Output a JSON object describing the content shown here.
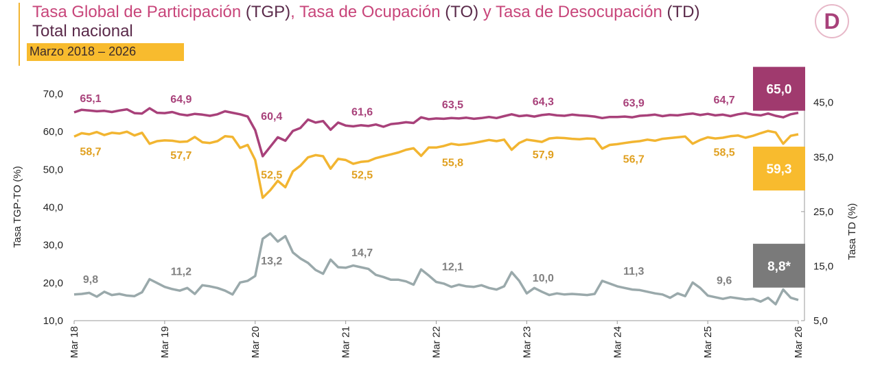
{
  "chart_data": {
    "type": "line",
    "title": [
      "Tasa Global de Participación ",
      "(TGP)",
      ", Tasa de Ocupación ",
      "(TO)",
      " y Tasa de Desocupación ",
      "(TD)"
    ],
    "subtitle": "Total nacional",
    "tag": "Marzo 2018 – 2026",
    "logo": "D",
    "y_label": "Tasa TGP-TO (%)",
    "y2_label": "Tasa TD (%)",
    "categories": [
      "Mar 18",
      null,
      null,
      null,
      null,
      null,
      null,
      null,
      null,
      null,
      null,
      null,
      "Mar 19",
      null,
      null,
      null,
      null,
      null,
      null,
      null,
      null,
      null,
      null,
      null,
      "Mar 20",
      null,
      null,
      null,
      null,
      null,
      null,
      null,
      null,
      null,
      null,
      null,
      "Mar 21",
      null,
      null,
      null,
      null,
      null,
      null,
      null,
      null,
      null,
      null,
      null,
      "Mar 22",
      null,
      null,
      null,
      null,
      null,
      null,
      null,
      null,
      null,
      null,
      null,
      "Mar 23",
      null,
      null,
      null,
      null,
      null,
      null,
      null,
      null,
      null,
      null,
      null,
      "Mar 24",
      null,
      null,
      null,
      null,
      null,
      null,
      null,
      null,
      null,
      null,
      null,
      "Mar 25",
      null,
      null,
      null,
      null,
      null,
      null,
      null,
      null,
      null,
      null,
      null,
      "Mar 26"
    ],
    "ylim": [
      10,
      70
    ],
    "yticks": [
      {
        "value": 10,
        "label": "10,0"
      },
      {
        "value": 20,
        "label": "20,0"
      },
      {
        "value": 30,
        "label": "30,0"
      },
      {
        "value": 40,
        "label": "40,0"
      },
      {
        "value": 50,
        "label": "50,0"
      },
      {
        "value": 60,
        "label": "60,0"
      },
      {
        "value": 70,
        "label": "70,0"
      }
    ],
    "y2lim": [
      5,
      46.6
    ],
    "y2ticks": [
      {
        "value": 5,
        "label": "5,0"
      },
      {
        "value": 15,
        "label": "15,0"
      },
      {
        "value": 25,
        "label": "25,0"
      },
      {
        "value": 35,
        "label": "35,0"
      },
      {
        "value": 45,
        "label": "45,0"
      }
    ],
    "series": [
      {
        "name": "TGP",
        "color": "#a8417a",
        "box_color": "#a03a6e",
        "values": [
          65.1,
          65.8,
          65.6,
          65.4,
          65.5,
          65.2,
          65.6,
          65.9,
          64.9,
          64.8,
          66.2,
          65.0,
          64.9,
          65.2,
          64.6,
          64.3,
          64.7,
          64.5,
          64.2,
          64.6,
          65.4,
          65.0,
          64.6,
          64.0,
          60.4,
          53.5,
          56.0,
          58.5,
          57.6,
          60.2,
          61.0,
          63.2,
          62.4,
          62.8,
          60.5,
          62.4,
          61.6,
          61.4,
          61.7,
          61.5,
          61.9,
          61.3,
          62.0,
          62.2,
          62.5,
          62.3,
          63.8,
          63.3,
          63.5,
          63.4,
          63.6,
          63.5,
          63.7,
          63.4,
          63.6,
          63.9,
          63.6,
          64.1,
          64.6,
          64.1,
          64.3,
          64.0,
          64.4,
          64.6,
          64.3,
          64.2,
          64.5,
          64.3,
          64.2,
          64.0,
          63.6,
          63.9,
          63.9,
          64.0,
          63.8,
          64.2,
          64.3,
          64.5,
          64.1,
          64.4,
          64.3,
          64.6,
          64.8,
          64.4,
          64.7,
          64.3,
          64.5,
          64.1,
          64.6,
          64.9,
          64.5,
          64.3,
          64.8,
          64.2,
          63.8,
          64.6,
          65.0
        ],
        "value_labels": [
          "65,1",
          null,
          null,
          null,
          null,
          null,
          null,
          null,
          null,
          null,
          null,
          null,
          "64,9",
          null,
          null,
          null,
          null,
          null,
          null,
          null,
          null,
          null,
          null,
          null,
          "60,4",
          null,
          null,
          null,
          null,
          null,
          null,
          null,
          null,
          null,
          null,
          null,
          "61,6",
          null,
          null,
          null,
          null,
          null,
          null,
          null,
          null,
          null,
          null,
          null,
          "63,5",
          null,
          null,
          null,
          null,
          null,
          null,
          null,
          null,
          null,
          null,
          null,
          "64,3",
          null,
          null,
          null,
          null,
          null,
          null,
          null,
          null,
          null,
          null,
          null,
          "63,9",
          null,
          null,
          null,
          null,
          null,
          null,
          null,
          null,
          null,
          null,
          null,
          "64,7",
          null,
          null,
          null,
          null,
          null,
          null,
          null,
          null,
          null,
          null,
          null,
          "65,0"
        ]
      },
      {
        "name": "TO",
        "color": "#f2b531",
        "box_color": "#f8bb2e",
        "values": [
          58.7,
          59.6,
          59.3,
          59.9,
          59.1,
          59.7,
          59.5,
          60.0,
          59.0,
          59.7,
          56.8,
          57.5,
          57.7,
          57.6,
          57.3,
          57.4,
          58.6,
          57.2,
          57.0,
          57.5,
          58.8,
          58.6,
          55.7,
          56.5,
          52.5,
          42.5,
          44.5,
          47.0,
          45.3,
          49.5,
          51.0,
          53.2,
          53.8,
          53.5,
          50.2,
          52.8,
          52.5,
          51.5,
          52.0,
          52.2,
          53.0,
          53.5,
          54.0,
          54.5,
          55.2,
          55.6,
          53.6,
          55.8,
          55.8,
          56.2,
          56.8,
          56.5,
          56.7,
          57.0,
          57.4,
          57.8,
          57.5,
          57.9,
          55.2,
          57.0,
          57.9,
          57.6,
          57.3,
          58.2,
          58.4,
          58.3,
          58.1,
          58.0,
          58.2,
          58.1,
          55.5,
          56.5,
          56.7,
          57.0,
          57.3,
          57.5,
          57.9,
          57.6,
          58.1,
          58.3,
          58.5,
          58.7,
          56.8,
          57.8,
          58.5,
          58.2,
          58.4,
          58.8,
          59.0,
          58.4,
          58.9,
          59.6,
          60.2,
          59.8,
          56.8,
          58.9,
          59.3
        ],
        "value_labels": [
          "58,7",
          null,
          null,
          null,
          null,
          null,
          null,
          null,
          null,
          null,
          null,
          null,
          "57,7",
          null,
          null,
          null,
          null,
          null,
          null,
          null,
          null,
          null,
          null,
          null,
          "52,5",
          null,
          null,
          null,
          null,
          null,
          null,
          null,
          null,
          null,
          null,
          null,
          "52,5",
          null,
          null,
          null,
          null,
          null,
          null,
          null,
          null,
          null,
          null,
          null,
          "55,8",
          null,
          null,
          null,
          null,
          null,
          null,
          null,
          null,
          null,
          null,
          null,
          "57,9",
          null,
          null,
          null,
          null,
          null,
          null,
          null,
          null,
          null,
          null,
          null,
          "56,7",
          null,
          null,
          null,
          null,
          null,
          null,
          null,
          null,
          null,
          null,
          null,
          "58,5",
          null,
          null,
          null,
          null,
          null,
          null,
          null,
          null,
          null,
          null,
          null,
          "59,3"
        ]
      },
      {
        "name": "TD",
        "color": "#9aa9ab",
        "box_color": "#7a7a7a",
        "axis": "y2",
        "values": [
          9.8,
          9.9,
          10.1,
          9.4,
          10.3,
          9.7,
          9.9,
          9.6,
          9.5,
          10.2,
          12.6,
          11.9,
          11.2,
          10.8,
          10.5,
          11.0,
          9.9,
          11.5,
          11.3,
          11.0,
          10.5,
          9.8,
          12.0,
          12.3,
          13.2,
          20.0,
          21.0,
          19.5,
          20.5,
          17.5,
          16.4,
          15.6,
          14.3,
          13.6,
          16.2,
          14.8,
          14.7,
          15.1,
          14.8,
          14.5,
          13.4,
          13.0,
          12.5,
          12.5,
          12.2,
          11.6,
          14.4,
          13.3,
          12.1,
          11.8,
          11.2,
          11.6,
          11.3,
          11.2,
          11.5,
          11.0,
          10.7,
          11.3,
          13.9,
          12.3,
          10.0,
          11.0,
          10.3,
          9.7,
          10.0,
          9.8,
          9.9,
          9.8,
          9.7,
          9.9,
          12.3,
          11.8,
          11.3,
          11.0,
          10.7,
          10.6,
          10.3,
          10.0,
          9.8,
          9.2,
          10.0,
          9.5,
          12.0,
          11.0,
          9.6,
          9.3,
          9.0,
          9.3,
          9.1,
          8.9,
          9.0,
          8.5,
          9.2,
          8.0,
          10.7,
          9.2,
          8.8
        ],
        "value_labels": [
          "9,8",
          null,
          null,
          null,
          null,
          null,
          null,
          null,
          null,
          null,
          null,
          null,
          "11,2",
          null,
          null,
          null,
          null,
          null,
          null,
          null,
          null,
          null,
          null,
          null,
          "13,2",
          null,
          null,
          null,
          null,
          null,
          null,
          null,
          null,
          null,
          null,
          null,
          "14,7",
          null,
          null,
          null,
          null,
          null,
          null,
          null,
          null,
          null,
          null,
          null,
          "12,1",
          null,
          null,
          null,
          null,
          null,
          null,
          null,
          null,
          null,
          null,
          null,
          "10,0",
          null,
          null,
          null,
          null,
          null,
          null,
          null,
          null,
          null,
          null,
          null,
          "11,3",
          null,
          null,
          null,
          null,
          null,
          null,
          null,
          null,
          null,
          null,
          null,
          "9,6",
          null,
          null,
          null,
          null,
          null,
          null,
          null,
          null,
          null,
          null,
          null,
          "8,8*"
        ]
      }
    ]
  }
}
